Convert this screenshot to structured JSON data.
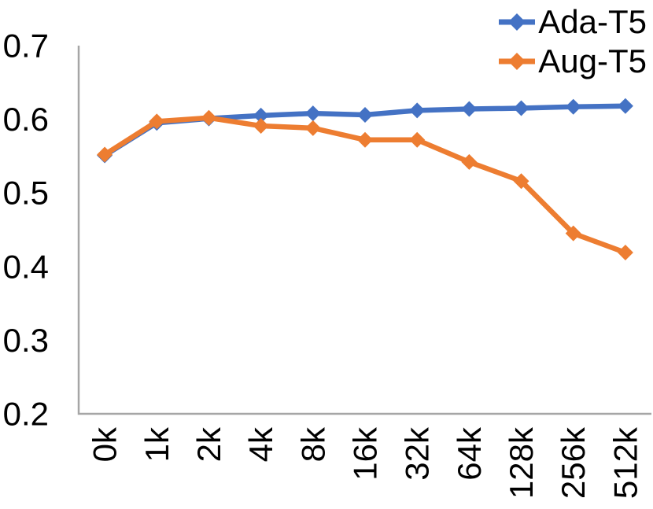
{
  "chart_data": {
    "type": "line",
    "title": "",
    "xlabel": "",
    "ylabel": "",
    "categories": [
      "0k",
      "1k",
      "2k",
      "4k",
      "8k",
      "16k",
      "32k",
      "64k",
      "128k",
      "256k",
      "512k"
    ],
    "series": [
      {
        "name": "Ada-T5",
        "color": "#4472C4",
        "values": [
          0.551,
          0.595,
          0.601,
          0.605,
          0.608,
          0.606,
          0.612,
          0.614,
          0.615,
          0.617,
          0.618
        ]
      },
      {
        "name": "Aug-T5",
        "color": "#ED7D31",
        "values": [
          0.552,
          0.597,
          0.602,
          0.591,
          0.588,
          0.572,
          0.572,
          0.542,
          0.516,
          0.445,
          0.419
        ]
      }
    ],
    "ylim": [
      0.2,
      0.7
    ],
    "yticks": [
      0.2,
      0.3,
      0.4,
      0.5,
      0.6,
      0.7
    ],
    "ytick_labels": [
      "0.2",
      "0.3",
      "0.4",
      "0.5",
      "0.6",
      "0.7"
    ],
    "grid": false,
    "marker": "diamond",
    "legend_position": "top-right",
    "axis_color": "#A6A6A6",
    "text_color": "#000000"
  }
}
